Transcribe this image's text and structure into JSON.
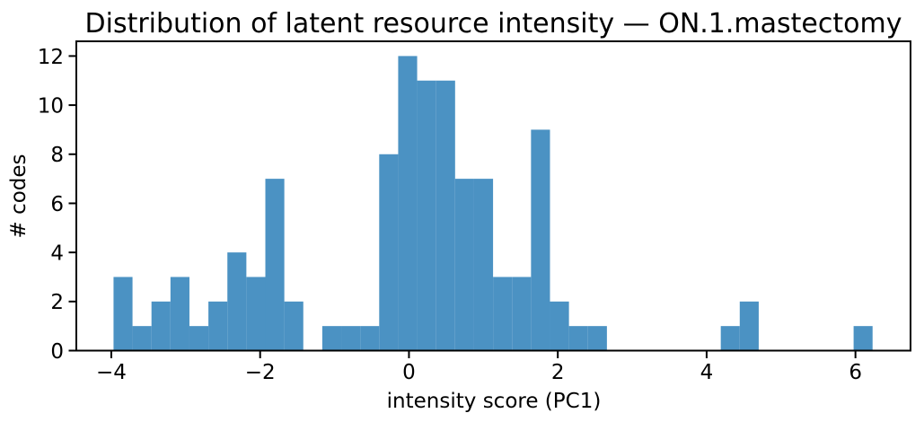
{
  "chart_data": {
    "type": "bar",
    "subtype": "histogram",
    "title": "Distribution of latent resource intensity — ON.1.mastectomy",
    "xlabel": "intensity score (PC1)",
    "ylabel": "# codes",
    "bar_color": "#4b92c3",
    "spine_color": "#000000",
    "text_color": "#000000",
    "bin_start": -3.97,
    "bin_width": 0.255,
    "counts": [
      3,
      1,
      2,
      3,
      1,
      2,
      4,
      3,
      7,
      2,
      0,
      1,
      1,
      1,
      8,
      12,
      11,
      11,
      7,
      7,
      3,
      3,
      9,
      2,
      1,
      1,
      0,
      0,
      0,
      0,
      0,
      0,
      1,
      2,
      0,
      0,
      0,
      0,
      0,
      1
    ],
    "x_ticks": [
      -4,
      -2,
      0,
      2,
      4,
      6
    ],
    "x_tick_labels": [
      "−4",
      "−2",
      "0",
      "2",
      "4",
      "6"
    ],
    "y_ticks": [
      0,
      2,
      4,
      6,
      8,
      10,
      12
    ],
    "y_tick_labels": [
      "0",
      "2",
      "4",
      "6",
      "8",
      "10",
      "12"
    ],
    "xlim": [
      -4.47,
      6.74
    ],
    "ylim": [
      0,
      12.6
    ],
    "grid": false,
    "legend": null
  }
}
